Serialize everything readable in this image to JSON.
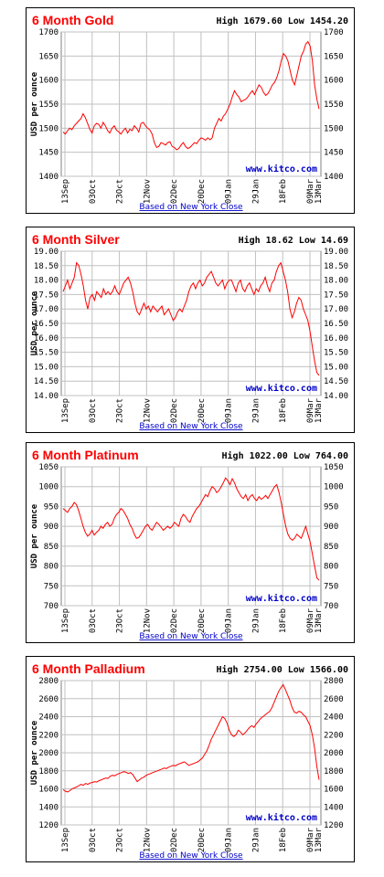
{
  "colors": {
    "title": "#ff0000",
    "line": "#ff0000",
    "grid": "#c0c0c0",
    "source": "#0000cc",
    "note": "#0000cc",
    "border": "#000000"
  },
  "chart_data": [
    {
      "type": "line",
      "title": "6 Month Gold",
      "high_low": "High 1679.60 Low 1454.20",
      "ylabel": "USD per ounce",
      "source": "www.kitco.com",
      "note": "Based on New York Close",
      "ylim": [
        1400,
        1700
      ],
      "yticks": [
        1400,
        1450,
        1500,
        1550,
        1600,
        1650,
        1700
      ],
      "ytick_labels": [
        "1400",
        "1450",
        "1500",
        "1550",
        "1600",
        "1650",
        "1700"
      ],
      "x_tick_labels": [
        "13Sep",
        "03Oct",
        "23Oct",
        "12Nov",
        "02Dec",
        "20Dec",
        "09Jan",
        "29Jan",
        "18Feb",
        "09Mar",
        "13Mar"
      ],
      "series": [
        {
          "values": [
            1492,
            1488,
            1495,
            1500,
            1497,
            1505,
            1510,
            1515,
            1520,
            1530,
            1522,
            1510,
            1498,
            1490,
            1505,
            1510,
            1508,
            1500,
            1512,
            1505,
            1495,
            1490,
            1500,
            1505,
            1496,
            1492,
            1488,
            1495,
            1500,
            1490,
            1498,
            1495,
            1505,
            1500,
            1492,
            1510,
            1512,
            1505,
            1500,
            1496,
            1488,
            1470,
            1460,
            1462,
            1470,
            1468,
            1465,
            1470,
            1472,
            1462,
            1460,
            1455,
            1458,
            1465,
            1470,
            1462,
            1458,
            1460,
            1465,
            1470,
            1468,
            1475,
            1480,
            1478,
            1475,
            1480,
            1476,
            1480,
            1500,
            1510,
            1520,
            1515,
            1525,
            1530,
            1540,
            1550,
            1565,
            1578,
            1570,
            1565,
            1555,
            1558,
            1560,
            1565,
            1572,
            1578,
            1570,
            1580,
            1590,
            1585,
            1575,
            1568,
            1572,
            1580,
            1590,
            1595,
            1605,
            1620,
            1640,
            1655,
            1650,
            1640,
            1620,
            1600,
            1590,
            1610,
            1630,
            1650,
            1660,
            1675,
            1680,
            1670,
            1640,
            1590,
            1560,
            1540
          ]
        }
      ]
    },
    {
      "type": "line",
      "title": "6 Month Silver",
      "high_low": "High 18.62 Low 14.69",
      "ylabel": "USD per ounce",
      "source": "www.kitco.com",
      "note": "Based on New York Close",
      "ylim": [
        14.0,
        19.0
      ],
      "yticks": [
        14.0,
        14.5,
        15.0,
        15.5,
        16.0,
        16.5,
        17.0,
        17.5,
        18.0,
        18.5,
        19.0
      ],
      "ytick_labels": [
        "14.00",
        "14.50",
        "15.00",
        "15.50",
        "16.00",
        "16.50",
        "17.00",
        "17.50",
        "18.00",
        "18.50",
        "19.00"
      ],
      "x_tick_labels": [
        "13Sep",
        "03Oct",
        "23Oct",
        "12Nov",
        "02Dec",
        "20Dec",
        "09Jan",
        "29Jan",
        "18Feb",
        "09Mar",
        "13Mar"
      ],
      "series": [
        {
          "values": [
            17.6,
            17.8,
            18.0,
            17.7,
            17.9,
            18.1,
            18.6,
            18.5,
            18.2,
            17.8,
            17.3,
            17.0,
            17.4,
            17.5,
            17.3,
            17.6,
            17.5,
            17.4,
            17.7,
            17.5,
            17.6,
            17.5,
            17.6,
            17.8,
            17.6,
            17.5,
            17.7,
            17.9,
            18.0,
            18.1,
            17.9,
            17.6,
            17.2,
            16.9,
            16.8,
            17.0,
            17.2,
            17.0,
            17.1,
            16.9,
            17.1,
            17.0,
            16.9,
            17.0,
            17.1,
            16.8,
            16.9,
            17.0,
            16.8,
            16.6,
            16.7,
            16.9,
            17.0,
            16.9,
            17.1,
            17.3,
            17.6,
            17.8,
            17.9,
            17.7,
            17.9,
            18.0,
            17.8,
            17.9,
            18.1,
            18.2,
            18.3,
            18.1,
            17.9,
            17.8,
            17.9,
            18.0,
            17.7,
            17.9,
            18.0,
            18.0,
            17.8,
            17.6,
            17.9,
            18.0,
            17.7,
            17.6,
            17.8,
            17.9,
            17.7,
            17.5,
            17.7,
            17.6,
            17.8,
            17.9,
            18.1,
            17.8,
            17.6,
            17.9,
            18.0,
            18.3,
            18.5,
            18.6,
            18.3,
            18.0,
            17.6,
            17.0,
            16.7,
            16.9,
            17.2,
            17.4,
            17.3,
            17.0,
            16.8,
            16.6,
            16.2,
            15.7,
            15.2,
            14.8,
            14.7
          ]
        }
      ]
    },
    {
      "type": "line",
      "title": "6 Month Platinum",
      "high_low": "High 1022.00 Low 764.00",
      "ylabel": "USD per ounce",
      "source": "www.kitco.com",
      "note": "Based on New York Close",
      "ylim": [
        700,
        1050
      ],
      "yticks": [
        700,
        750,
        800,
        850,
        900,
        950,
        1000,
        1050
      ],
      "ytick_labels": [
        "700",
        "750",
        "800",
        "850",
        "900",
        "950",
        "1000",
        "1050"
      ],
      "x_tick_labels": [
        "13Sep",
        "03Oct",
        "23Oct",
        "12Nov",
        "02Dec",
        "20Dec",
        "09Jan",
        "29Jan",
        "18Feb",
        "09Mar",
        "13Mar"
      ],
      "series": [
        {
          "values": [
            945,
            940,
            935,
            945,
            950,
            960,
            955,
            940,
            920,
            900,
            885,
            875,
            880,
            890,
            878,
            885,
            890,
            900,
            895,
            905,
            910,
            900,
            905,
            920,
            930,
            935,
            945,
            940,
            930,
            920,
            905,
            895,
            880,
            870,
            872,
            880,
            890,
            900,
            905,
            895,
            890,
            900,
            910,
            905,
            898,
            890,
            895,
            900,
            895,
            900,
            910,
            905,
            900,
            920,
            930,
            925,
            915,
            910,
            925,
            935,
            945,
            950,
            960,
            970,
            980,
            975,
            990,
            1000,
            995,
            985,
            990,
            1000,
            1010,
            1022,
            1015,
            1005,
            1020,
            1010,
            995,
            985,
            975,
            970,
            980,
            965,
            975,
            980,
            970,
            965,
            975,
            968,
            972,
            978,
            970,
            980,
            990,
            1000,
            1005,
            985,
            960,
            930,
            900,
            880,
            870,
            865,
            870,
            880,
            875,
            870,
            885,
            900,
            880,
            860,
            830,
            800,
            770,
            764
          ]
        }
      ]
    },
    {
      "type": "line",
      "title": "6 Month Palladium",
      "high_low": "High 2754.00 Low 1566.00",
      "ylabel": "USD per ounce",
      "source": "www.kitco.com",
      "note": "Based on New York Close",
      "ylim": [
        1200,
        2800
      ],
      "yticks": [
        1200,
        1400,
        1600,
        1800,
        2000,
        2200,
        2400,
        2600,
        2800
      ],
      "ytick_labels": [
        "1200",
        "1400",
        "1600",
        "1800",
        "2000",
        "2200",
        "2400",
        "2600",
        "2800"
      ],
      "x_tick_labels": [
        "13Sep",
        "03Oct",
        "23Oct",
        "12Nov",
        "02Dec",
        "20Dec",
        "09Jan",
        "29Jan",
        "18Feb",
        "09Mar",
        "13Mar"
      ],
      "series": [
        {
          "values": [
            1590,
            1575,
            1566,
            1580,
            1600,
            1610,
            1620,
            1635,
            1650,
            1640,
            1660,
            1650,
            1665,
            1670,
            1680,
            1675,
            1690,
            1700,
            1710,
            1720,
            1715,
            1740,
            1750,
            1745,
            1760,
            1770,
            1780,
            1790,
            1785,
            1770,
            1780,
            1760,
            1720,
            1680,
            1700,
            1720,
            1730,
            1750,
            1760,
            1770,
            1780,
            1790,
            1800,
            1810,
            1820,
            1830,
            1825,
            1840,
            1850,
            1860,
            1855,
            1870,
            1880,
            1890,
            1900,
            1880,
            1860,
            1870,
            1880,
            1890,
            1900,
            1920,
            1940,
            1980,
            2020,
            2080,
            2150,
            2200,
            2250,
            2300,
            2350,
            2400,
            2380,
            2330,
            2250,
            2200,
            2180,
            2200,
            2250,
            2230,
            2200,
            2220,
            2250,
            2280,
            2300,
            2280,
            2320,
            2350,
            2380,
            2400,
            2420,
            2440,
            2460,
            2500,
            2560,
            2620,
            2680,
            2720,
            2754,
            2700,
            2640,
            2580,
            2500,
            2450,
            2440,
            2460,
            2450,
            2420,
            2400,
            2350,
            2300,
            2200,
            2050,
            1850,
            1700
          ]
        }
      ]
    }
  ]
}
